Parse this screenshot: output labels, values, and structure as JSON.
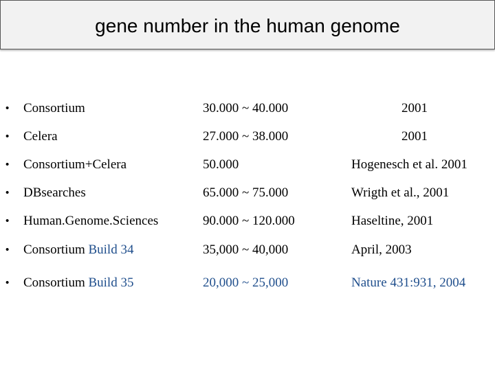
{
  "header": {
    "title": "gene number in the human genome"
  },
  "rows": [
    {
      "name": "Consortium",
      "name_suffix": "",
      "count": "30.000 ~ 40.000",
      "source": "2001"
    },
    {
      "name": "Celera",
      "name_suffix": "",
      "count": "27.000 ~ 38.000",
      "source": "2001"
    },
    {
      "name": "Consortium+Celera",
      "name_suffix": "",
      "count": "50.000",
      "source": "Hogenesch et al. 2001"
    },
    {
      "name": "DBsearches",
      "name_suffix": "",
      "count": "65.000 ~ 75.000",
      "source": "Wrigth et al., 2001"
    },
    {
      "name": "Human.Genome.Sciences",
      "name_suffix": "",
      "count": "90.000 ~ 120.000",
      "source": "Haseltine, 2001"
    },
    {
      "name": "Consortium ",
      "name_suffix": "Build 34",
      "count": "35,000 ~ 40,000",
      "source": "April, 2003"
    },
    {
      "name": "Consortium ",
      "name_suffix": "Build 35",
      "count": "20,000 ~ 25,000",
      "source": "Nature 431:931, 2004"
    }
  ],
  "bullet": "•",
  "colors": {
    "accent_blue": "#1f4e8c",
    "title_bg": "#f2f2f2",
    "text": "#000000"
  }
}
